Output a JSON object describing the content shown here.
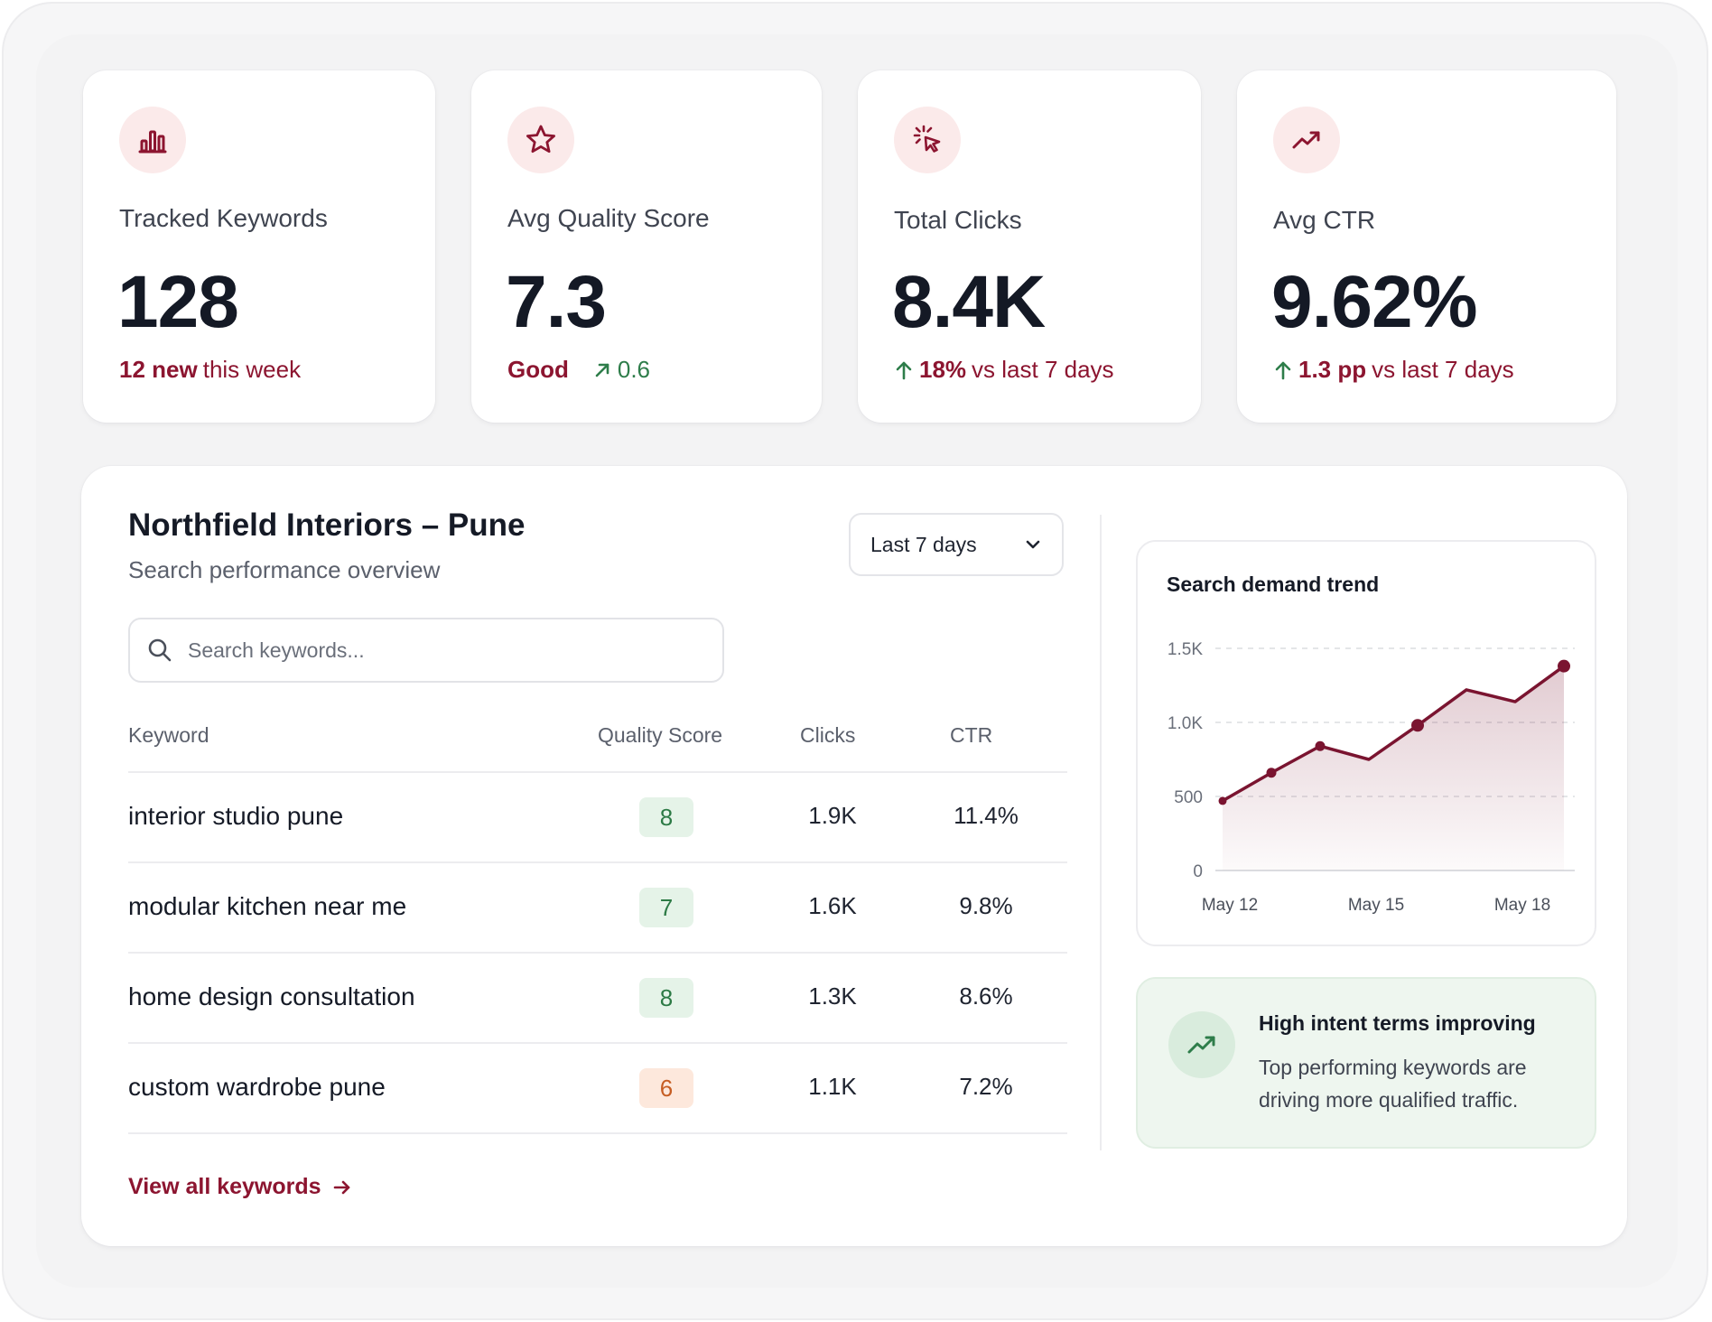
{
  "stats": [
    {
      "label": "Tracked Keywords",
      "value": "128",
      "foot_strong": "12 new",
      "foot_rest": "this week",
      "icon": "bar-chart-icon"
    },
    {
      "label": "Avg Quality Score",
      "value": "7.3",
      "foot_strong": "Good",
      "foot_delta": "0.6",
      "icon": "star-icon"
    },
    {
      "label": "Total Clicks",
      "value": "8.4K",
      "foot_strong": "18%",
      "foot_rest": "vs last 7 days",
      "icon": "click-icon"
    },
    {
      "label": "Avg CTR",
      "value": "9.62%",
      "foot_strong": "1.3 pp",
      "foot_rest": "vs last 7 days",
      "icon": "trend-up-icon"
    }
  ],
  "panel": {
    "title": "Northfield Interiors – Pune",
    "subtitle": "Search performance overview",
    "range_select": "Last 7 days",
    "search_placeholder": "Search keywords...",
    "columns": [
      "Keyword",
      "Quality Score",
      "Clicks",
      "CTR"
    ],
    "rows": [
      {
        "keyword": "interior studio pune",
        "quality": "8",
        "clicks": "1.9K",
        "ctr": "11.4%"
      },
      {
        "keyword": "modular kitchen near me",
        "quality": "7",
        "clicks": "1.6K",
        "ctr": "9.8%"
      },
      {
        "keyword": "home design consultation",
        "quality": "8",
        "clicks": "1.3K",
        "ctr": "8.6%"
      },
      {
        "keyword": "custom wardrobe pune",
        "quality": "6",
        "clicks": "1.1K",
        "ctr": "7.2%"
      }
    ],
    "view_all": "View all keywords"
  },
  "chart_data": {
    "type": "area",
    "title": "Search demand trend",
    "x": [
      "May 12",
      "May 13",
      "May 14",
      "May 15",
      "May 16",
      "May 17",
      "May 18",
      "May 19"
    ],
    "x_ticks": [
      "May 12",
      "May 15",
      "May 18"
    ],
    "values": [
      470,
      660,
      840,
      750,
      980,
      1220,
      1140,
      1380
    ],
    "marked_points": [
      0,
      1,
      2,
      4,
      7
    ],
    "y_ticks": [
      "0",
      "500",
      "1.0K",
      "1.5K"
    ],
    "ylim": [
      0,
      1500
    ],
    "grid": true,
    "color": "#7a1430"
  },
  "insight": {
    "title": "High intent terms improving",
    "body": "Top performing keywords are driving more qualified traffic."
  },
  "colors": {
    "accent": "#8c1530",
    "positive": "#2e7d4a",
    "warning": "#c65d23"
  }
}
